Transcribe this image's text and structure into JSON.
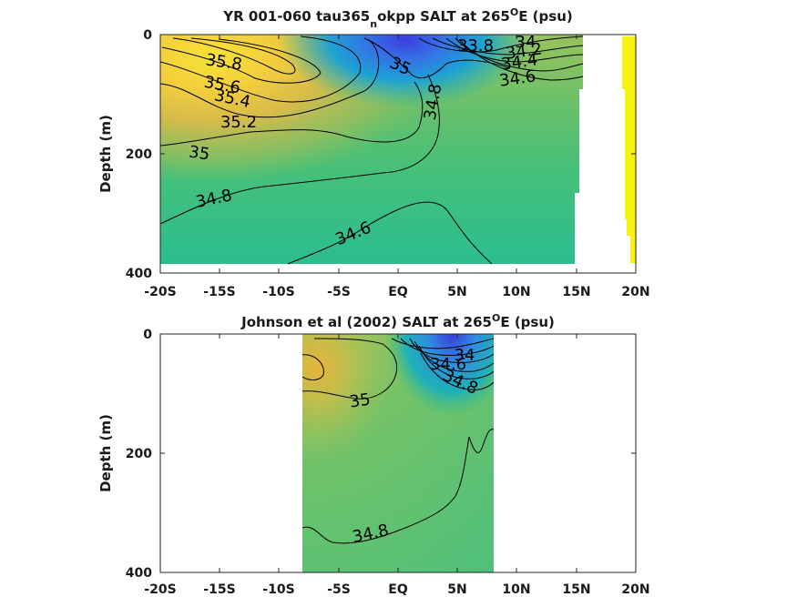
{
  "chart_data": [
    {
      "type": "contour",
      "title": "YR 001-060 tau365",
      "title_subscript": "n",
      "title_rest": "okpp SALT at 265",
      "title_superscript": "O",
      "title_tail": "E (psu)",
      "ylabel": "Depth (m)",
      "xlim": [
        -20,
        20
      ],
      "ylim": [
        0,
        400
      ],
      "y_reversed": true,
      "x_ticks": [
        -20,
        -15,
        -10,
        -5,
        0,
        5,
        10,
        15,
        20
      ],
      "x_tick_labels": [
        "-20S",
        "-15S",
        "-10S",
        "-5S",
        "EQ",
        "5N",
        "10N",
        "15N",
        "20N"
      ],
      "y_ticks": [
        0,
        200,
        400
      ],
      "y_tick_labels": [
        "0",
        "200",
        "400"
      ],
      "grid": false,
      "contour_labels": [
        {
          "text": "35.8",
          "x": -14.5,
          "y": 24
        },
        {
          "text": "35.6",
          "x": -14.7,
          "y": 43
        },
        {
          "text": "35.4",
          "x": -13.7,
          "y": 62
        },
        {
          "text": "35.2",
          "x": -12.3,
          "y": 85
        },
        {
          "text": "35",
          "x": -16.6,
          "y": 118
        },
        {
          "text": "34.8",
          "x": -15.2,
          "y": 165
        },
        {
          "text": "34.6",
          "x": -3.5,
          "y": 190
        },
        {
          "text": "35",
          "x": 0.0,
          "y": 24
        },
        {
          "text": "34.8",
          "x": 3.0,
          "y": 66
        },
        {
          "text": "33.8",
          "x": 6.4,
          "y": 8
        },
        {
          "text": "34",
          "x": 10.7,
          "y": 7
        },
        {
          "text": "34.2",
          "x": 10.7,
          "y": 16
        },
        {
          "text": "34.4",
          "x": 10.4,
          "y": 24
        },
        {
          "text": "34.6",
          "x": 10.0,
          "y": 36
        }
      ]
    },
    {
      "type": "contour",
      "title": "Johnson et al (2002) SALT at 265",
      "title_superscript": "O",
      "title_tail": "E (psu)",
      "ylabel": "Depth (m)",
      "xlim": [
        -20,
        20
      ],
      "ylim": [
        0,
        400
      ],
      "y_reversed": true,
      "x_ticks": [
        -20,
        -15,
        -10,
        -5,
        0,
        5,
        10,
        15,
        20
      ],
      "x_tick_labels": [
        "-20S",
        "-15S",
        "-10S",
        "-5S",
        "EQ",
        "5N",
        "10N",
        "15N",
        "20N"
      ],
      "y_ticks": [
        0,
        200,
        400
      ],
      "y_tick_labels": [
        "0",
        "200",
        "400"
      ],
      "grid": false,
      "data_extent_x": [
        -8,
        8
      ],
      "contour_labels": [
        {
          "text": "35",
          "x": -3.0,
          "y": 110
        },
        {
          "text": "34",
          "x": 5.9,
          "y": 30
        },
        {
          "text": "34.6",
          "x": 4.2,
          "y": 46
        },
        {
          "text": "34.8",
          "x": 5.5,
          "y": 70
        },
        {
          "text": "34.8",
          "x": -2.3,
          "y": 338
        }
      ]
    }
  ]
}
